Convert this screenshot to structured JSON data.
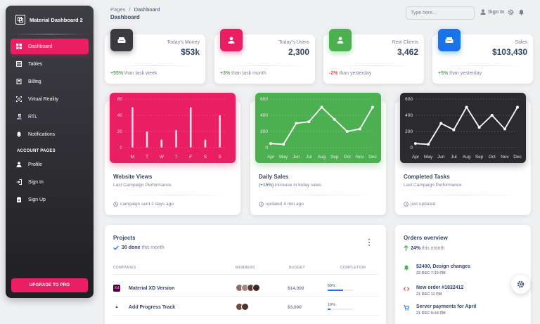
{
  "brand": {
    "name": "Material Dashboard 2"
  },
  "sidebar": {
    "items": [
      {
        "label": "Dashboard",
        "icon": "dashboard-icon",
        "active": true
      },
      {
        "label": "Tables",
        "icon": "table-icon"
      },
      {
        "label": "Billing",
        "icon": "receipt-icon"
      },
      {
        "label": "Virtual Reality",
        "icon": "view-in-ar-icon"
      },
      {
        "label": "RTL",
        "icon": "format-textdirection-r-to-l-icon"
      },
      {
        "label": "Notifications",
        "icon": "notifications-icon"
      }
    ],
    "section_label": "ACCOUNT PAGES",
    "account_items": [
      {
        "label": "Profile",
        "icon": "person-icon"
      },
      {
        "label": "Sign In",
        "icon": "login-icon"
      },
      {
        "label": "Sign Up",
        "icon": "assignment-icon"
      }
    ],
    "upgrade_label": "UPGRADE TO PRO"
  },
  "header": {
    "breadcrumb_root": "Pages",
    "breadcrumb_sep": "/",
    "breadcrumb_current": "Dashboard",
    "title": "Dashboard",
    "search_placeholder": "Type here...",
    "signin_label": "Sign In"
  },
  "stats": [
    {
      "title": "Today's Money",
      "value": "$53k",
      "change": "+55%",
      "suffix": " than lask week",
      "change_color": "#4caf50",
      "icon": "weekend-icon",
      "color": "#3a3a40"
    },
    {
      "title": "Today's Users",
      "value": "2,300",
      "change": "+3%",
      "suffix": " than lask month",
      "change_color": "#4caf50",
      "icon": "person-icon",
      "color": "#e91e63"
    },
    {
      "title": "New Clients",
      "value": "3,462",
      "change": "-2%",
      "suffix": " than yesterday",
      "change_color": "#f44335",
      "icon": "person-add-icon",
      "color": "#4caf50"
    },
    {
      "title": "Sales",
      "value": "$103,430",
      "change": "+5%",
      "suffix": " than yesterday",
      "change_color": "#4caf50",
      "icon": "weekend-icon",
      "color": "#1a73e8"
    }
  ],
  "charts": [
    {
      "title": "Website Views",
      "subtitle_strong": "",
      "subtitle": "Last Campaign Performance",
      "footer": "campaign sent 2 days ago",
      "footer_icon": "schedule-icon",
      "bg": "#e91e63"
    },
    {
      "title": "Daily Sales",
      "subtitle_strong": "(+15%)",
      "subtitle": " increase in today sales",
      "footer": "updated 4 min ago",
      "footer_icon": "schedule-icon",
      "bg": "#4caf50"
    },
    {
      "title": "Completed Tasks",
      "subtitle_strong": "",
      "subtitle": "Last Campaign Performance",
      "footer": "just updated",
      "footer_icon": "schedule-icon",
      "bg": "#2b2b2f"
    }
  ],
  "chart_data": [
    {
      "type": "bar",
      "categories": [
        "M",
        "T",
        "W",
        "T",
        "F",
        "S",
        "S"
      ],
      "values": [
        50,
        20,
        10,
        22,
        50,
        10,
        40
      ],
      "ylim": [
        0,
        60
      ],
      "yticks": [
        0,
        20,
        40,
        60
      ],
      "grid": true,
      "ylabel": "",
      "xlabel": ""
    },
    {
      "type": "line",
      "categories": [
        "Apr",
        "May",
        "Jun",
        "Jul",
        "Aug",
        "Sep",
        "Oct",
        "Nov",
        "Dec"
      ],
      "values": [
        50,
        40,
        300,
        320,
        500,
        350,
        200,
        230,
        500
      ],
      "ylim": [
        0,
        600
      ],
      "yticks": [
        0,
        200,
        400,
        600
      ],
      "grid": true,
      "ylabel": "",
      "xlabel": ""
    },
    {
      "type": "line",
      "categories": [
        "Apr",
        "May",
        "Jun",
        "Jul",
        "Aug",
        "Sep",
        "Oct",
        "Nov",
        "Dec"
      ],
      "values": [
        50,
        40,
        300,
        220,
        500,
        250,
        400,
        230,
        500
      ],
      "ylim": [
        0,
        600
      ],
      "yticks": [
        0,
        200,
        400,
        600
      ],
      "grid": true,
      "ylabel": "",
      "xlabel": ""
    }
  ],
  "projects": {
    "title": "Projects",
    "done_strong": "30 done",
    "done_rest": " this month",
    "columns": [
      "COMPANIES",
      "MEMBERS",
      "BUDGET",
      "COMPLETION"
    ],
    "rows": [
      {
        "company": "Material XD Version",
        "logo_text": "Xd",
        "logo_bg": "#470137",
        "logo_color": "#ff61f6",
        "budget": "$14,000",
        "completion_label": "60%",
        "completion": 0.6,
        "avatars": [
          "#8d6e63",
          "#a1887f",
          "#5d4037",
          "#3e2723"
        ]
      },
      {
        "company": "Add Progress Track",
        "logo_text": "▲",
        "logo_bg": "#ffffff",
        "logo_color": "#0052cc",
        "budget": "$3,000",
        "completion_label": "10%",
        "completion": 0.1,
        "avatars": [
          "#6d4c41",
          "#4e342e"
        ]
      }
    ]
  },
  "orders": {
    "title": "Orders overview",
    "stat_strong": "24%",
    "stat_rest": " this month",
    "items": [
      {
        "title": "$2400, Design changes",
        "date": "22 DEC 7:20 PM",
        "icon": "notifications-icon",
        "color": "#4caf50"
      },
      {
        "title": "New order #1832412",
        "date": "21 DEC 11 PM",
        "icon": "code-icon",
        "color": "#f44335"
      },
      {
        "title": "Server payments for April",
        "date": "21 DEC 9:34 PM",
        "icon": "shopping-cart-icon",
        "color": "#1a73e8"
      }
    ]
  }
}
